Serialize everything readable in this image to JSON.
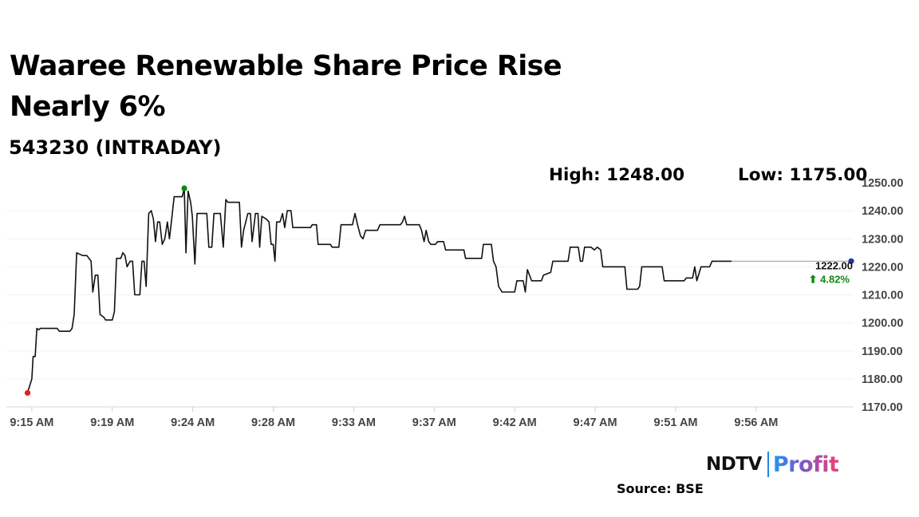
{
  "chart_data": {
    "type": "line",
    "title": "Waaree Renewable Share Price Rise Nearly 6%",
    "subtitle": "543230 (INTRADAY)",
    "stats": {
      "high": "High: 1248.00",
      "low": "Low: 1175.00"
    },
    "ylim": [
      1170,
      1250
    ],
    "yticks": [
      "1250.00",
      "1240.00",
      "1230.00",
      "1220.00",
      "1210.00",
      "1200.00",
      "1190.00",
      "1180.00",
      "1170.00"
    ],
    "xlim": [
      0,
      200
    ],
    "xticks": [
      {
        "x": 6,
        "label": "9:15 AM"
      },
      {
        "x": 25,
        "label": "9:19 AM"
      },
      {
        "x": 44,
        "label": "9:24 AM"
      },
      {
        "x": 63,
        "label": "9:28 AM"
      },
      {
        "x": 82,
        "label": "9:33 AM"
      },
      {
        "x": 101,
        "label": "9:37 AM"
      },
      {
        "x": 120,
        "label": "9:42 AM"
      },
      {
        "x": 139,
        "label": "9:47 AM"
      },
      {
        "x": 158,
        "label": "9:51 AM"
      },
      {
        "x": 177,
        "label": "9:56 AM"
      }
    ],
    "last_price_label": "1222.00",
    "change_label": "⬆ 4.82%",
    "colors": {
      "line": "#111111",
      "high": "#0a8a0a",
      "low": "#e0201b",
      "last": "#2333b0",
      "change": "#108a10"
    },
    "series": [
      [
        5,
        1175
      ],
      [
        6,
        1180
      ],
      [
        6.3,
        1188
      ],
      [
        6.8,
        1188
      ],
      [
        7.2,
        1198
      ],
      [
        7.6,
        1197.5
      ],
      [
        8,
        1198
      ],
      [
        12,
        1198
      ],
      [
        12.5,
        1197
      ],
      [
        15,
        1197
      ],
      [
        15.5,
        1198
      ],
      [
        16,
        1203
      ],
      [
        16.6,
        1225
      ],
      [
        18,
        1224
      ],
      [
        19,
        1224
      ],
      [
        20,
        1222
      ],
      [
        20.4,
        1211
      ],
      [
        21,
        1217
      ],
      [
        21.6,
        1217
      ],
      [
        22.1,
        1203
      ],
      [
        23,
        1202
      ],
      [
        23.4,
        1201
      ],
      [
        25,
        1201
      ],
      [
        25.5,
        1204
      ],
      [
        26,
        1223
      ],
      [
        27,
        1223
      ],
      [
        27.5,
        1225
      ],
      [
        28,
        1224
      ],
      [
        28.5,
        1220
      ],
      [
        29.2,
        1222
      ],
      [
        29.8,
        1222
      ],
      [
        30.3,
        1210
      ],
      [
        31.5,
        1210
      ],
      [
        32,
        1222
      ],
      [
        32.5,
        1222
      ],
      [
        33,
        1213
      ],
      [
        33.6,
        1239
      ],
      [
        34.2,
        1240
      ],
      [
        34.7,
        1237
      ],
      [
        35.2,
        1229
      ],
      [
        35.7,
        1236
      ],
      [
        36.2,
        1236
      ],
      [
        36.8,
        1228
      ],
      [
        37.4,
        1230
      ],
      [
        38,
        1236
      ],
      [
        38.5,
        1230
      ],
      [
        39.1,
        1238
      ],
      [
        39.6,
        1245
      ],
      [
        41.5,
        1245
      ],
      [
        42,
        1248
      ],
      [
        42.4,
        1225
      ],
      [
        42.9,
        1247
      ],
      [
        43.5,
        1243
      ],
      [
        43.9,
        1238
      ],
      [
        44.5,
        1221
      ],
      [
        45,
        1239
      ],
      [
        47.3,
        1239
      ],
      [
        47.8,
        1227
      ],
      [
        48.5,
        1227
      ],
      [
        49,
        1239
      ],
      [
        50.5,
        1239
      ],
      [
        51.2,
        1227
      ],
      [
        51.8,
        1244
      ],
      [
        52.3,
        1243
      ],
      [
        55,
        1243
      ],
      [
        55.5,
        1227
      ],
      [
        56,
        1233
      ],
      [
        57,
        1239
      ],
      [
        57.6,
        1239
      ],
      [
        58,
        1229
      ],
      [
        58.8,
        1239
      ],
      [
        59.4,
        1239
      ],
      [
        59.8,
        1227
      ],
      [
        60.3,
        1238
      ],
      [
        61.4,
        1237
      ],
      [
        62,
        1236
      ],
      [
        62.5,
        1228
      ],
      [
        63,
        1228
      ],
      [
        63.4,
        1222
      ],
      [
        63.8,
        1236
      ],
      [
        64.6,
        1236
      ],
      [
        65.2,
        1239
      ],
      [
        65.7,
        1234
      ],
      [
        66.3,
        1240
      ],
      [
        67.2,
        1240
      ],
      [
        67.6,
        1234
      ],
      [
        71.8,
        1234
      ],
      [
        72.2,
        1235
      ],
      [
        73.2,
        1235
      ],
      [
        73.6,
        1228
      ],
      [
        76.5,
        1228
      ],
      [
        76.9,
        1227
      ],
      [
        78.5,
        1227
      ],
      [
        79,
        1235
      ],
      [
        81.7,
        1235
      ],
      [
        82.3,
        1239
      ],
      [
        82.9,
        1235
      ],
      [
        83.6,
        1231
      ],
      [
        84.2,
        1230
      ],
      [
        84.8,
        1233
      ],
      [
        87.6,
        1233
      ],
      [
        88.2,
        1235
      ],
      [
        93,
        1235
      ],
      [
        93.5,
        1236
      ],
      [
        94,
        1238
      ],
      [
        94.5,
        1235
      ],
      [
        97.5,
        1235
      ],
      [
        98,
        1233
      ],
      [
        98.6,
        1229
      ],
      [
        99.1,
        1233
      ],
      [
        99.7,
        1229
      ],
      [
        100.2,
        1228
      ],
      [
        101.3,
        1228
      ],
      [
        101.8,
        1229
      ],
      [
        103.2,
        1229
      ],
      [
        103.7,
        1226
      ],
      [
        108,
        1226
      ],
      [
        108.4,
        1223
      ],
      [
        112.2,
        1223
      ],
      [
        112.6,
        1228
      ],
      [
        114.5,
        1228
      ],
      [
        115,
        1222
      ],
      [
        115.6,
        1220
      ],
      [
        116.2,
        1213
      ],
      [
        117,
        1211
      ],
      [
        120,
        1211
      ],
      [
        120.5,
        1215
      ],
      [
        122,
        1215
      ],
      [
        122.5,
        1211
      ],
      [
        123,
        1219
      ],
      [
        124,
        1215
      ],
      [
        126.3,
        1215
      ],
      [
        126.8,
        1217
      ],
      [
        128.5,
        1218
      ],
      [
        129,
        1222
      ],
      [
        132.6,
        1222
      ],
      [
        133.1,
        1227
      ],
      [
        135,
        1227
      ],
      [
        135.5,
        1222
      ],
      [
        136,
        1222
      ],
      [
        136.5,
        1227
      ],
      [
        138,
        1227
      ],
      [
        138.8,
        1226
      ],
      [
        139.5,
        1227
      ],
      [
        140.3,
        1226
      ],
      [
        140.8,
        1220
      ],
      [
        146,
        1220
      ],
      [
        146.5,
        1212
      ],
      [
        149,
        1212
      ],
      [
        149.5,
        1213
      ],
      [
        150,
        1220
      ],
      [
        154.8,
        1220
      ],
      [
        155.3,
        1215
      ],
      [
        160,
        1215
      ],
      [
        160.5,
        1216
      ],
      [
        162,
        1216
      ],
      [
        162.5,
        1220
      ],
      [
        163,
        1215
      ],
      [
        164,
        1220
      ],
      [
        166,
        1220
      ],
      [
        166.6,
        1222
      ],
      [
        171.2,
        1222
      ]
    ]
  },
  "footer": {
    "source": "Source: BSE",
    "brand_ndtv": "NDTV",
    "brand_profit": "Profit"
  }
}
